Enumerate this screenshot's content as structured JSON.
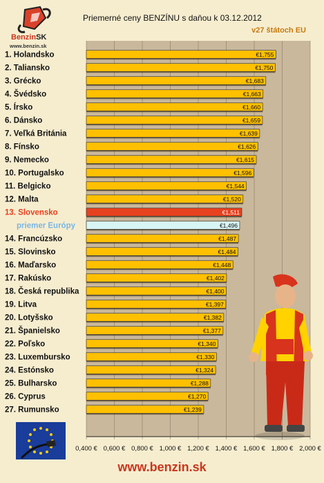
{
  "logo": {
    "brand": "Benzin",
    "brand_suffix": "SK",
    "url": "www.benzin.sk"
  },
  "footer": {
    "url": "www.benzin.sk"
  },
  "colors": {
    "bar": "#ffc000",
    "bar_highlight": "#e8411f",
    "bar_average": "#d8f5f5",
    "label_highlight": "#e8411f",
    "label_average": "#7ab6e6",
    "plot_background": "#c9b89c"
  },
  "chart_data": {
    "type": "bar",
    "orientation": "horizontal",
    "title": "Priemerné ceny BENZÍNU s daňou k 03.12.2012",
    "subtitle": "v27 štátoch EU",
    "categories": [
      "1. Holandsko",
      "2. Taliansko",
      "3. Grécko",
      "4. Švédsko",
      "5. Írsko",
      "6. Dánsko",
      "7. Veľká Británia",
      "8. Fínsko",
      "9. Nemecko",
      "10. Portugalsko",
      "11. Belgicko",
      "12. Malta",
      "13. Slovensko",
      "priemer Európy",
      "14. Francúzsko",
      "15. Slovinsko",
      "16. Maďarsko",
      "17. Rakúsko",
      "18. Česká republika",
      "19. Litva",
      "20. Lotyšsko",
      "21. Španielsko",
      "22. Poľsko",
      "23. Luxembursko",
      "24. Estónsko",
      "25. Bulharsko",
      "26. Cyprus",
      "27. Rumunsko"
    ],
    "values": [
      1.755,
      1.75,
      1.683,
      1.663,
      1.66,
      1.659,
      1.639,
      1.626,
      1.615,
      1.596,
      1.544,
      1.52,
      1.511,
      1.496,
      1.487,
      1.484,
      1.448,
      1.402,
      1.4,
      1.397,
      1.382,
      1.377,
      1.34,
      1.33,
      1.324,
      1.288,
      1.27,
      1.239
    ],
    "value_labels": [
      "€1,755",
      "€1,750",
      "€1,683",
      "€1,663",
      "€1,660",
      "€1,659",
      "€1,639",
      "€1,626",
      "€1,615",
      "€1,596",
      "€1,544",
      "€1,520",
      "€1,511",
      "€1,496",
      "€1,487",
      "€1,484",
      "€1,448",
      "€1,402",
      "€1,400",
      "€1,397",
      "€1,382",
      "€1,377",
      "€1,340",
      "€1,330",
      "€1,324",
      "€1,288",
      "€1,270",
      "€1,239"
    ],
    "highlight": "13. Slovensko",
    "average": "priemer Európy",
    "xlim": [
      0.4,
      2.0
    ],
    "xticks": [
      0.4,
      0.6,
      0.8,
      1.0,
      1.2,
      1.4,
      1.6,
      1.8,
      2.0
    ],
    "xtick_labels": [
      "0,400 €",
      "0,600 €",
      "0,800 €",
      "1,000 €",
      "1,200 €",
      "1,400 €",
      "1,600 €",
      "1,800 €",
      "2,000 €"
    ],
    "grid": true
  }
}
